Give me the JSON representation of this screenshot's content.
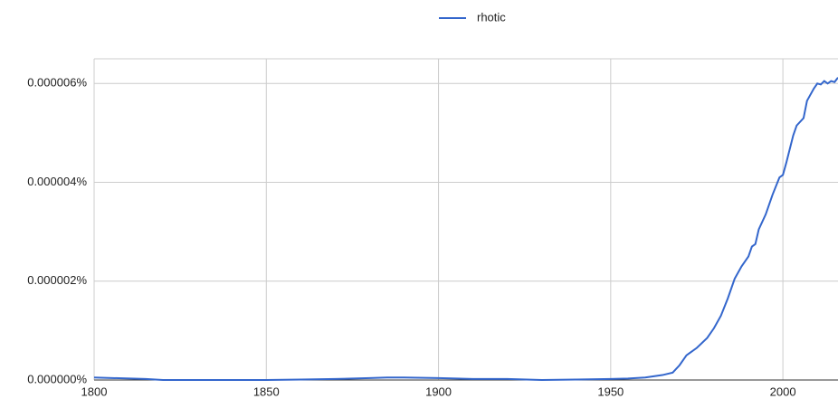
{
  "chart_data": {
    "type": "line",
    "x": [
      1800,
      1815,
      1820,
      1850,
      1860,
      1870,
      1880,
      1885,
      1890,
      1900,
      1910,
      1920,
      1930,
      1940,
      1950,
      1955,
      1960,
      1965,
      1968,
      1970,
      1972,
      1975,
      1978,
      1980,
      1982,
      1984,
      1986,
      1988,
      1990,
      1991,
      1992,
      1993,
      1995,
      1997,
      1999,
      2000,
      2001,
      2003,
      2004,
      2006,
      2007,
      2009,
      2010,
      2011,
      2012,
      2013,
      2014,
      2015,
      2016
    ],
    "series": [
      {
        "name": "rhotic",
        "color": "#3366cc",
        "values": [
          5e-08,
          2e-08,
          0,
          0,
          1e-08,
          2e-08,
          4e-08,
          5e-08,
          5e-08,
          4e-08,
          2e-08,
          2e-08,
          0,
          1e-08,
          2e-08,
          3e-08,
          5e-08,
          1e-07,
          1.5e-07,
          3e-07,
          5e-07,
          6.5e-07,
          8.5e-07,
          1.05e-06,
          1.3e-06,
          1.65e-06,
          2.05e-06,
          2.3e-06,
          2.5e-06,
          2.7e-06,
          2.75e-06,
          3.05e-06,
          3.35e-06,
          3.75e-06,
          4.1e-06,
          4.15e-06,
          4.4e-06,
          4.95e-06,
          5.15e-06,
          5.3e-06,
          5.65e-06,
          5.9e-06,
          6e-06,
          5.98e-06,
          6.05e-06,
          6e-06,
          6.05e-06,
          6.03e-06,
          6.12e-06
        ]
      }
    ],
    "xlim": [
      1800,
      2016
    ],
    "xticks": [
      1800,
      1850,
      1900,
      1950,
      2000
    ],
    "ylim": [
      0,
      6.5e-06
    ],
    "yticks": [
      {
        "value": 0,
        "label": "0.000000%"
      },
      {
        "value": 2e-06,
        "label": "0.000002%"
      },
      {
        "value": 4e-06,
        "label": "0.000004%"
      },
      {
        "value": 6e-06,
        "label": "0.000006%"
      }
    ],
    "grid": true,
    "legend": "top"
  }
}
